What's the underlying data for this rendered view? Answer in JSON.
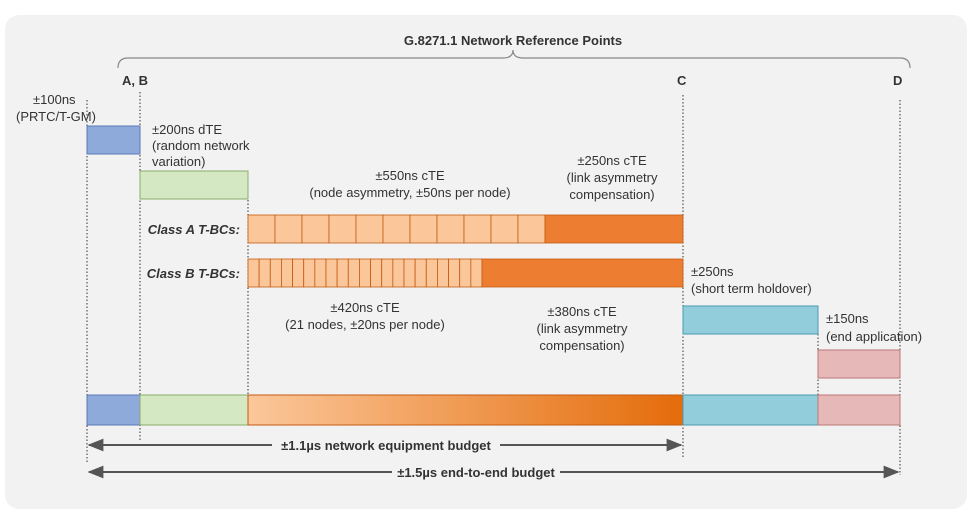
{
  "title": "G.8271.1 Network Reference Points",
  "points": [
    "A, B",
    "C",
    "D"
  ],
  "prtc": [
    "±100ns",
    "(PRTC/T-GM)"
  ],
  "dte": [
    "±200ns dTE",
    "(random network",
    "variation)"
  ],
  "class_a": {
    "label": "Class A T-BCs:",
    "node_text": [
      "±550ns cTE",
      "(node asymmetry, ±50ns per node)"
    ],
    "link_text": [
      "±250ns cTE",
      "(link asymmetry",
      "compensation)"
    ]
  },
  "class_b": {
    "label": "Class B T-BCs:",
    "node_text": [
      "±420ns cTE",
      "(21 nodes, ±20ns per node)"
    ],
    "link_text": [
      "±380ns cTE",
      "(link asymmetry",
      "compensation)"
    ]
  },
  "holdover": [
    "±250ns",
    "(short term holdover)"
  ],
  "end_app": [
    "±150ns",
    "(end application)"
  ],
  "budgets": [
    "±1.1µs network equipment budget",
    "±1.5µs end-to-end budget"
  ]
}
